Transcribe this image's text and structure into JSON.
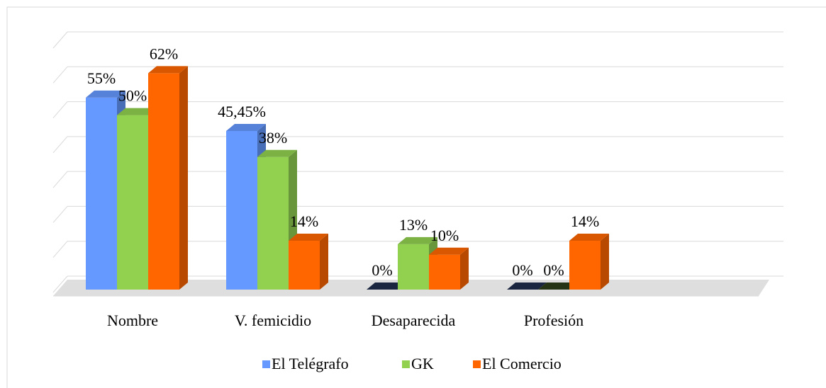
{
  "chart_data": {
    "type": "bar3d",
    "categories": [
      "Nombre",
      "V. femicidio",
      "Desaparecida",
      "Profesión"
    ],
    "series": [
      {
        "name": "El Telégrafo",
        "color": "#6699ff",
        "values": [
          55,
          45.45,
          0,
          0
        ],
        "value_labels": [
          "55%",
          "45,45%",
          "0%",
          "0%"
        ]
      },
      {
        "name": "GK",
        "color": "#92d050",
        "values": [
          50,
          38,
          13,
          0
        ],
        "value_labels": [
          "50%",
          "38%",
          "13%",
          "0%"
        ]
      },
      {
        "name": "El Comercio",
        "color": "#ff6600",
        "values": [
          62,
          14,
          10,
          14
        ],
        "value_labels": [
          "62%",
          "14%",
          "10%",
          "14%"
        ]
      }
    ],
    "ylim": [
      0,
      70
    ],
    "yticks": [
      0,
      10,
      20,
      30,
      40,
      50,
      60,
      70
    ],
    "grid": true,
    "legend": "bottom"
  }
}
